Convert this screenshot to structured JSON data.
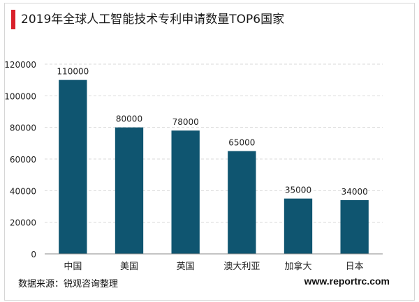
{
  "title": "2019年全球人工智能技术专利申请数量TOP6国家",
  "source": "数据来源：锐观咨询整理",
  "website": "www.reportrc.com",
  "colors": {
    "bar": "#0f5570",
    "accent": "#d9202a",
    "grid": "#d9d9d9",
    "axis": "#8a8a8a"
  },
  "chart_data": {
    "type": "bar",
    "title": "2019年全球人工智能技术专利申请数量TOP6国家",
    "xlabel": "",
    "ylabel": "",
    "categories": [
      "中国",
      "美国",
      "英国",
      "澳大利亚",
      "加拿大",
      "日本"
    ],
    "values": [
      110000,
      80000,
      78000,
      65000,
      35000,
      34000
    ],
    "data_labels": [
      "110000",
      "80000",
      "78000",
      "65000",
      "35000",
      "34000"
    ],
    "ylim": [
      0,
      120000
    ],
    "yticks": [
      0,
      20000,
      40000,
      60000,
      80000,
      100000,
      120000
    ],
    "ytick_labels": [
      "0",
      "20000",
      "40000",
      "60000",
      "80000",
      "100000",
      "120000"
    ],
    "grid": true,
    "grid_style": "dashed",
    "legend": "none"
  }
}
